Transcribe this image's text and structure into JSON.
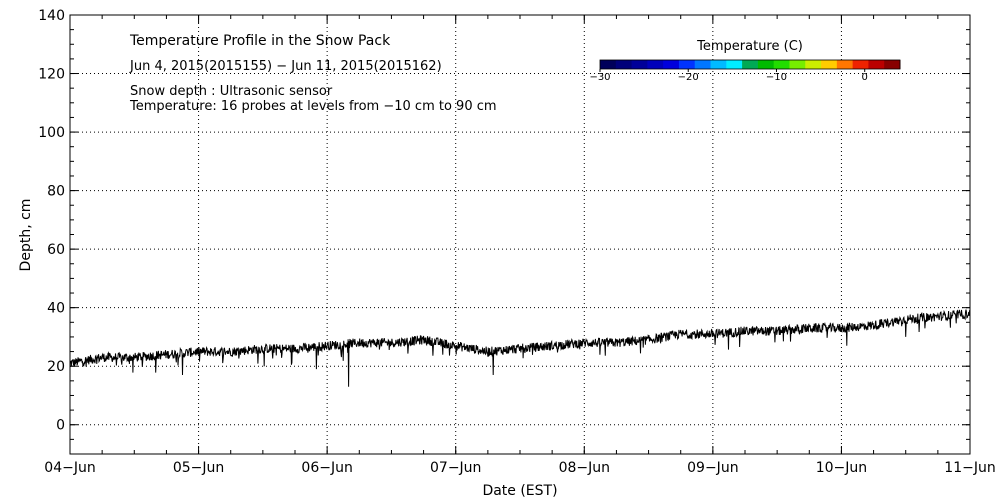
{
  "chart_data": {
    "type": "line",
    "title": "Temperature Profile in the Snow Pack",
    "subtitle": "Jun  4, 2015(2015155) − Jun 11, 2015(2015162)",
    "annotations": [
      "Snow depth : Ultrasonic sensor",
      "Temperature: 16 probes at levels from −10 cm to 90 cm"
    ],
    "xlabel": "Date (EST)",
    "ylabel": "Depth, cm",
    "x_ticks": [
      "04−Jun",
      "05−Jun",
      "06−Jun",
      "07−Jun",
      "08−Jun",
      "09−Jun",
      "10−Jun",
      "11−Jun"
    ],
    "y_ticks": [
      "0",
      "20",
      "40",
      "60",
      "80",
      "100",
      "120",
      "140"
    ],
    "xlim": [
      "2015-06-04",
      "2015-06-11"
    ],
    "ylim": [
      -10,
      140
    ],
    "grid": true,
    "grid_style": "dotted",
    "line_color": "#000000",
    "series": [
      {
        "x": [
          "2015-06-04 00:00",
          "2015-06-04 06:00",
          "2015-06-04 12:00",
          "2015-06-04 18:00",
          "2015-06-05 00:00",
          "2015-06-05 06:00",
          "2015-06-05 12:00",
          "2015-06-05 18:00",
          "2015-06-06 00:00",
          "2015-06-06 06:00",
          "2015-06-06 12:00",
          "2015-06-06 18:00",
          "2015-06-07 00:00",
          "2015-06-07 06:00",
          "2015-06-07 12:00",
          "2015-06-07 18:00",
          "2015-06-08 00:00",
          "2015-06-08 06:00",
          "2015-06-08 12:00",
          "2015-06-08 18:00",
          "2015-06-09 00:00",
          "2015-06-09 06:00",
          "2015-06-09 12:00",
          "2015-06-09 18:00",
          "2015-06-10 00:00",
          "2015-06-10 06:00",
          "2015-06-10 12:00",
          "2015-06-10 18:00",
          "2015-06-11 00:00"
        ],
        "values": [
          21,
          23,
          23,
          24,
          25,
          25,
          26,
          26,
          27,
          28,
          28,
          29,
          27,
          25,
          26,
          27,
          28,
          28,
          29,
          31,
          31,
          32,
          32,
          33,
          33,
          34,
          36,
          37,
          38
        ]
      }
    ],
    "dips": [
      {
        "x": "2015-06-06 04:00",
        "value": 13
      },
      {
        "x": "2015-06-07 07:00",
        "value": 17
      },
      {
        "x": "2015-06-04 21:00",
        "value": 17
      },
      {
        "x": "2015-06-05 22:00",
        "value": 19
      },
      {
        "x": "2015-06-10 01:00",
        "value": 27
      },
      {
        "x": "2015-06-10 12:00",
        "value": 30
      }
    ],
    "colorbar": {
      "title": "Temperature (C)",
      "ticks": [
        "−30",
        "−20",
        "−10",
        "0"
      ],
      "range": [
        -30,
        4
      ],
      "colors": [
        "#00005a",
        "#00007a",
        "#000099",
        "#0000bb",
        "#0000dd",
        "#0033ff",
        "#0077ff",
        "#00bbff",
        "#00eeff",
        "#00aa55",
        "#00bb00",
        "#22dd00",
        "#77ee00",
        "#ccee00",
        "#ffcc00",
        "#ff7700",
        "#ee2200",
        "#bb0000",
        "#880000"
      ]
    }
  }
}
